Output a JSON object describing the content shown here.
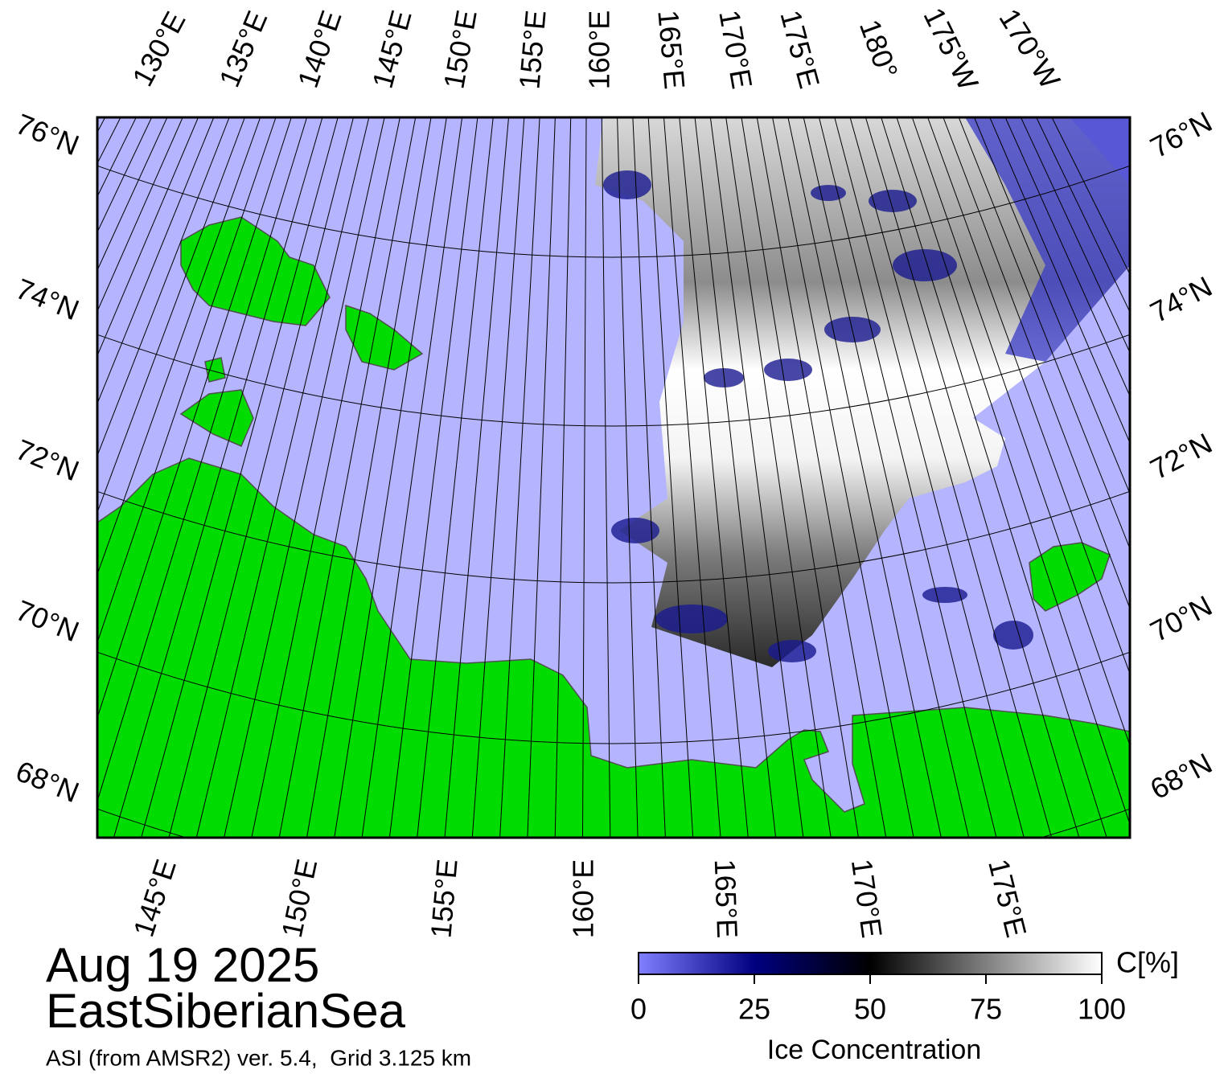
{
  "map": {
    "lat_labels_left": [
      "76°N",
      "74°N",
      "72°N",
      "70°N",
      "68°N"
    ],
    "lat_labels_right": [
      "76°N",
      "74°N",
      "72°N",
      "70°N",
      "68°N"
    ],
    "lon_labels_top": [
      "130°E",
      "135°E",
      "140°E",
      "145°E",
      "150°E",
      "155°E",
      "160°E",
      "165°E",
      "170°E",
      "175°E",
      "180°",
      "175°W",
      "170°W"
    ],
    "lon_labels_bottom": [
      "145°E",
      "150°E",
      "155°E",
      "160°E",
      "165°E",
      "170°E",
      "175°E"
    ]
  },
  "title": {
    "date": "Aug 19 2025",
    "region": "EastSiberianSea",
    "source": "ASI (from AMSR2) ver. 5.4,  Grid 3.125 km"
  },
  "colorbar": {
    "lim": [
      0,
      100
    ],
    "ticks": [
      0,
      25,
      50,
      75,
      100
    ],
    "unit": "C[%]",
    "label": "Ice Concentration"
  }
}
